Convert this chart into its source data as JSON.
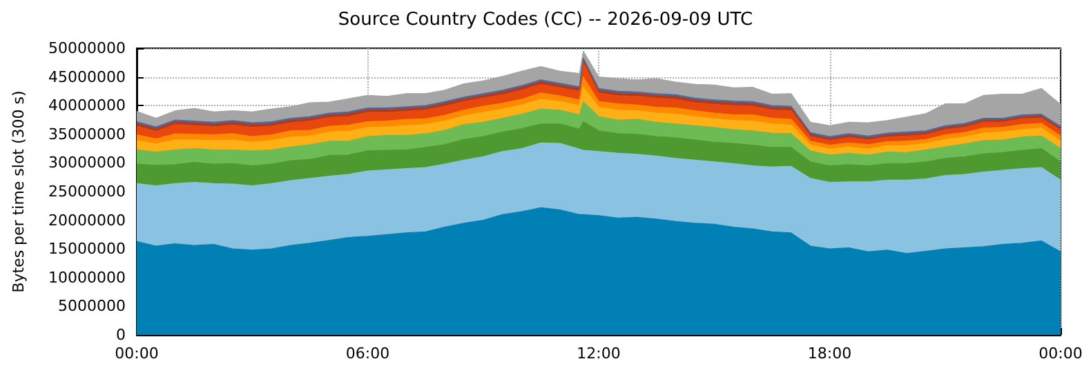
{
  "chart_data": {
    "type": "area",
    "stacked": true,
    "title": "Source Country Codes (CC) -- 2026-09-09 UTC",
    "ylabel": "Bytes per time slot (300 s)",
    "grid": true,
    "x": [
      0,
      0.5,
      1,
      1.5,
      2,
      2.5,
      3,
      3.5,
      4,
      4.5,
      5,
      5.5,
      6,
      6.5,
      7,
      7.5,
      8,
      8.5,
      9,
      9.5,
      10,
      10.5,
      11,
      11.5,
      11.6,
      12,
      12.5,
      13,
      13.5,
      14,
      14.5,
      15,
      15.5,
      16,
      16.5,
      17,
      17.5,
      18,
      18.5,
      19,
      19.5,
      20,
      20.5,
      21,
      21.5,
      22,
      22.5,
      23,
      23.5,
      24
    ],
    "xlim": [
      0,
      24
    ],
    "xticks": [
      {
        "value": 0,
        "label": "00:00"
      },
      {
        "value": 6,
        "label": "06:00"
      },
      {
        "value": 12,
        "label": "12:00"
      },
      {
        "value": 18,
        "label": "18:00"
      },
      {
        "value": 24,
        "label": "00:00"
      }
    ],
    "ylim": [
      0,
      50000000
    ],
    "yticks": [
      0,
      5000000,
      10000000,
      15000000,
      20000000,
      25000000,
      30000000,
      35000000,
      40000000,
      45000000,
      50000000
    ],
    "series": [
      {
        "color": "#0080b4",
        "values": [
          16300000,
          15500000,
          15900000,
          15600000,
          15800000,
          15000000,
          14800000,
          15000000,
          15600000,
          16000000,
          16500000,
          17000000,
          17200000,
          17500000,
          17800000,
          18000000,
          18800000,
          19500000,
          20000000,
          21000000,
          21500000,
          22200000,
          21800000,
          21000000,
          21000000,
          20800000,
          20400000,
          20500000,
          20200000,
          19800000,
          19500000,
          19300000,
          18800000,
          18500000,
          18000000,
          17800000,
          15500000,
          15000000,
          15200000,
          14500000,
          14800000,
          14200000,
          14600000,
          15000000,
          15200000,
          15400000,
          15800000,
          16000000,
          16400000,
          14500000
        ]
      },
      {
        "color": "#8ac2e2",
        "values": [
          10100000,
          10500000,
          10500000,
          11000000,
          10600000,
          11300000,
          11200000,
          11400000,
          11300000,
          11300000,
          11200000,
          11000000,
          11400000,
          11300000,
          11200000,
          11200000,
          11000000,
          11000000,
          11100000,
          11000000,
          11000000,
          11300000,
          11600000,
          11400000,
          11200000,
          11200000,
          11300000,
          11000000,
          11000000,
          11000000,
          11000000,
          10900000,
          11100000,
          11000000,
          11300000,
          11600000,
          11800000,
          11600000,
          11500000,
          12200000,
          12200000,
          12800000,
          12600000,
          12800000,
          12800000,
          13000000,
          12900000,
          13000000,
          12800000,
          12500000
        ]
      },
      {
        "color": "#4f9a30",
        "values": [
          3400000,
          3600000,
          3300000,
          3500000,
          3400000,
          3600000,
          3500000,
          3400000,
          3500000,
          3300000,
          3600000,
          3400000,
          3500000,
          3400000,
          3300000,
          3500000,
          3400000,
          3600000,
          3500000,
          3400000,
          3500000,
          3300000,
          3400000,
          3500000,
          5000000,
          3600000,
          3400000,
          3500000,
          3400000,
          3600000,
          3500000,
          3400000,
          3500000,
          3600000,
          3400000,
          3300000,
          2900000,
          2900000,
          3000000,
          2800000,
          2900000,
          2900000,
          3000000,
          3000000,
          3100000,
          3200000,
          3100000,
          3200000,
          3300000,
          3200000
        ]
      },
      {
        "color": "#6dbb55",
        "values": [
          2500000,
          2300000,
          2600000,
          2400000,
          2500000,
          2400000,
          2600000,
          2500000,
          2400000,
          2600000,
          2500000,
          2400000,
          2500000,
          2600000,
          2500000,
          2400000,
          2500000,
          2600000,
          2500000,
          2400000,
          2500000,
          2600000,
          2400000,
          2500000,
          3500000,
          2500000,
          2400000,
          2600000,
          2500000,
          2400000,
          2500000,
          2600000,
          2400000,
          2500000,
          2500000,
          2400000,
          1900000,
          1900000,
          2000000,
          1900000,
          2000000,
          1900000,
          2100000,
          2000000,
          2200000,
          2300000,
          2200000,
          2300000,
          2200000,
          2300000
        ]
      },
      {
        "color": "#ffb014",
        "values": [
          1600000,
          1400000,
          1700000,
          1500000,
          1600000,
          1700000,
          1500000,
          1600000,
          1700000,
          1500000,
          1600000,
          1700000,
          1600000,
          1500000,
          1700000,
          1600000,
          1600000,
          1500000,
          1700000,
          1600000,
          1600000,
          1700000,
          1500000,
          1600000,
          2500000,
          1600000,
          1700000,
          1500000,
          1600000,
          1700000,
          1600000,
          1500000,
          1600000,
          1700000,
          1600000,
          1500000,
          1000000,
          1000000,
          1100000,
          1000000,
          1100000,
          1200000,
          1100000,
          1300000,
          1200000,
          1300000,
          1400000,
          1300000,
          1400000,
          1300000
        ]
      },
      {
        "color": "#ff8a00",
        "values": [
          1000000,
          900000,
          1100000,
          1000000,
          1000000,
          1100000,
          1000000,
          1000000,
          1100000,
          1000000,
          1000000,
          1100000,
          1000000,
          1000000,
          1100000,
          1000000,
          1000000,
          1000000,
          1100000,
          1000000,
          1000000,
          1100000,
          1000000,
          1000000,
          1800000,
          1000000,
          1100000,
          1000000,
          1000000,
          1100000,
          1000000,
          1000000,
          1000000,
          1100000,
          1000000,
          1000000,
          700000,
          700000,
          700000,
          800000,
          700000,
          800000,
          700000,
          800000,
          800000,
          900000,
          800000,
          900000,
          800000,
          900000
        ]
      },
      {
        "color": "#e8480c",
        "values": [
          1500000,
          1300000,
          1600000,
          1500000,
          1400000,
          1500000,
          1600000,
          1500000,
          1400000,
          1600000,
          1500000,
          1500000,
          1600000,
          1500000,
          1400000,
          1500000,
          1600000,
          1500000,
          1400000,
          1500000,
          1600000,
          1500000,
          1400000,
          1500000,
          2500000,
          1500000,
          1400000,
          1500000,
          1600000,
          1500000,
          1400000,
          1500000,
          1600000,
          1500000,
          1400000,
          1500000,
          800000,
          800000,
          900000,
          800000,
          800000,
          900000,
          800000,
          900000,
          900000,
          1000000,
          900000,
          1000000,
          900000,
          1000000
        ]
      },
      {
        "color": "#b03a20",
        "values": [
          500000,
          500000,
          500000,
          500000,
          500000,
          500000,
          500000,
          500000,
          500000,
          500000,
          500000,
          500000,
          500000,
          500000,
          500000,
          500000,
          500000,
          500000,
          500000,
          500000,
          500000,
          500000,
          500000,
          500000,
          500000,
          500000,
          500000,
          500000,
          500000,
          500000,
          500000,
          500000,
          500000,
          500000,
          500000,
          500000,
          400000,
          400000,
          400000,
          400000,
          400000,
          400000,
          400000,
          400000,
          400000,
          400000,
          400000,
          400000,
          400000,
          400000
        ]
      },
      {
        "color": "#4a6aa0",
        "values": [
          300000,
          300000,
          300000,
          300000,
          300000,
          300000,
          300000,
          300000,
          300000,
          300000,
          300000,
          300000,
          300000,
          300000,
          300000,
          300000,
          300000,
          300000,
          300000,
          300000,
          300000,
          300000,
          300000,
          300000,
          300000,
          300000,
          300000,
          300000,
          300000,
          300000,
          300000,
          300000,
          300000,
          300000,
          300000,
          300000,
          300000,
          300000,
          300000,
          300000,
          300000,
          300000,
          300000,
          300000,
          300000,
          300000,
          300000,
          300000,
          300000,
          300000
        ]
      },
      {
        "color": "#a5a5a5",
        "values": [
          1800000,
          1500000,
          1600000,
          2200000,
          1800000,
          1700000,
          1900000,
          2200000,
          2000000,
          2400000,
          1900000,
          2300000,
          2200000,
          2000000,
          2300000,
          2100000,
          2000000,
          2300000,
          2200000,
          2400000,
          2500000,
          2300000,
          2100000,
          2300000,
          1200000,
          2000000,
          2200000,
          2100000,
          2600000,
          2200000,
          2400000,
          2600000,
          2300000,
          2500000,
          2000000,
          2200000,
          1800000,
          1900000,
          2000000,
          2300000,
          2200000,
          2600000,
          3000000,
          3800000,
          3400000,
          4000000,
          4200000,
          3600000,
          4500000,
          3800000
        ]
      }
    ]
  }
}
